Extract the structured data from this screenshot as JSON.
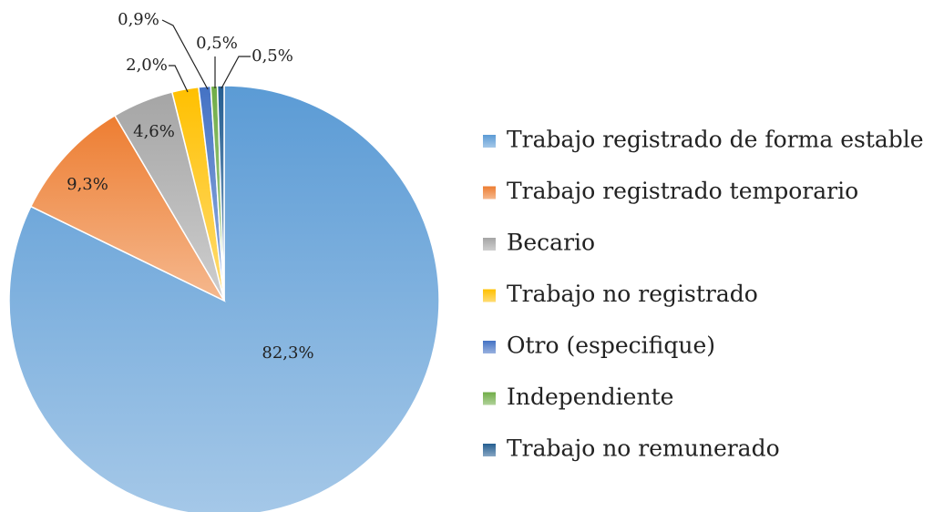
{
  "chart_data": {
    "type": "pie",
    "categories": [
      "Trabajo registrado de forma estable",
      "Trabajo registrado temporario",
      "Becario",
      "Trabajo no registrado",
      "Otro (especifique)",
      "Independiente",
      "Trabajo no remunerado"
    ],
    "values": [
      82.3,
      9.3,
      4.6,
      2.0,
      0.9,
      0.5,
      0.5
    ],
    "value_labels": [
      "82,3%",
      "9,3%",
      "4,6%",
      "2,0%",
      "0,9%",
      "0,5%",
      "0,5%"
    ],
    "colors": [
      "#5b9bd5",
      "#ed7d31",
      "#a5a5a5",
      "#ffc000",
      "#4472c4",
      "#70ad47",
      "#255e91"
    ],
    "legend": "right"
  }
}
